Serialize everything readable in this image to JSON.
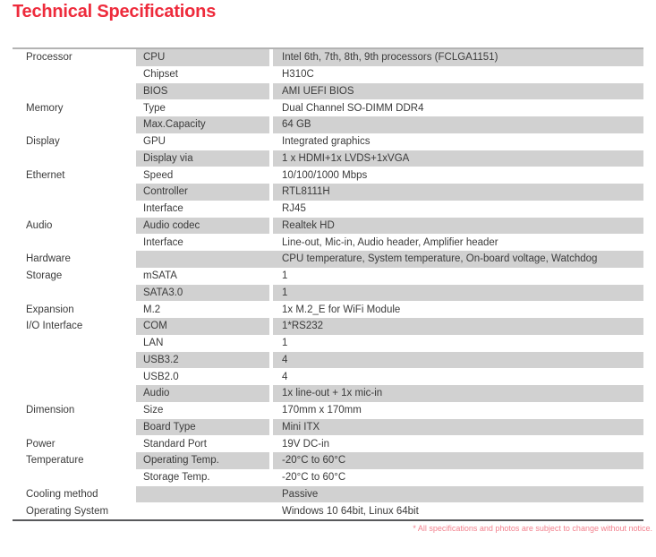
{
  "title": "Technical Specifications",
  "footnote": "* All specifications and photos are subject to change without notice.",
  "colors": {
    "accent_red": "#ee2b3c",
    "footnote_red": "#f2808d",
    "stripe_gray": "#d1d1d1",
    "border_top": "#b3b3b3",
    "border_bottom": "#58595b",
    "text": "#3b3b3b"
  },
  "table": {
    "rows": [
      {
        "category": "Processor",
        "label": "CPU",
        "value": "Intel 6th, 7th, 8th, 9th processors (FCLGA1151)",
        "shaded": true,
        "merged": false
      },
      {
        "category": "",
        "label": "Chipset",
        "value": "H310C",
        "shaded": false,
        "merged": false
      },
      {
        "category": "",
        "label": "BIOS",
        "value": "AMI UEFI BIOS",
        "shaded": true,
        "merged": false
      },
      {
        "category": "Memory",
        "label": "Type",
        "value": "Dual Channel SO-DIMM DDR4",
        "shaded": false,
        "merged": false
      },
      {
        "category": "",
        "label": "Max.Capacity",
        "value": "64 GB",
        "shaded": true,
        "merged": false
      },
      {
        "category": "Display",
        "label": "GPU",
        "value": "Integrated graphics",
        "shaded": false,
        "merged": false
      },
      {
        "category": "",
        "label": "Display via",
        "value": "1 x HDMI+1x LVDS+1xVGA",
        "shaded": true,
        "merged": false
      },
      {
        "category": "Ethernet",
        "label": "Speed",
        "value": "10/100/1000 Mbps",
        "shaded": false,
        "merged": false
      },
      {
        "category": "",
        "label": "Controller",
        "value": "RTL8111H",
        "shaded": true,
        "merged": false
      },
      {
        "category": "",
        "label": "Interface",
        "value": "RJ45",
        "shaded": false,
        "merged": false
      },
      {
        "category": "Audio",
        "label": "Audio codec",
        "value": "Realtek HD",
        "shaded": true,
        "merged": false
      },
      {
        "category": "",
        "label": "Interface",
        "value": "Line-out, Mic-in, Audio header, Amplifier header",
        "shaded": false,
        "merged": false
      },
      {
        "category": "Hardware",
        "label": "",
        "value": "CPU temperature, System temperature, On-board voltage, Watchdog",
        "shaded": true,
        "merged": true
      },
      {
        "category": "Storage",
        "label": "mSATA",
        "value": "1",
        "shaded": false,
        "merged": false
      },
      {
        "category": "",
        "label": "SATA3.0",
        "value": "1",
        "shaded": true,
        "merged": false
      },
      {
        "category": "Expansion",
        "label": "M.2",
        "value": "1x M.2_E for WiFi Module",
        "shaded": false,
        "merged": false
      },
      {
        "category": "I/O Interface",
        "label": "COM",
        "value": "1*RS232",
        "shaded": true,
        "merged": false
      },
      {
        "category": "",
        "label": "LAN",
        "value": "1",
        "shaded": false,
        "merged": false
      },
      {
        "category": "",
        "label": "USB3.2",
        "value": "4",
        "shaded": true,
        "merged": false
      },
      {
        "category": "",
        "label": "USB2.0",
        "value": "4",
        "shaded": false,
        "merged": false
      },
      {
        "category": "",
        "label": "Audio",
        "value": "1x line-out + 1x mic-in",
        "shaded": true,
        "merged": false
      },
      {
        "category": "Dimension",
        "label": "Size",
        "value": "170mm x 170mm",
        "shaded": false,
        "merged": false
      },
      {
        "category": "",
        "label": "Board Type",
        "value": "Mini ITX",
        "shaded": true,
        "merged": false
      },
      {
        "category": "Power",
        "label": "Standard Port",
        "value": "19V DC-in",
        "shaded": false,
        "merged": false
      },
      {
        "category": "Temperature",
        "label": "Operating Temp.",
        "value": "-20°C to 60°C",
        "shaded": true,
        "merged": false
      },
      {
        "category": "",
        "label": "Storage Temp.",
        "value": "-20°C to 60°C",
        "shaded": false,
        "merged": false
      },
      {
        "category": "Cooling method",
        "label": "",
        "value": "Passive",
        "shaded": true,
        "merged": true
      },
      {
        "category": "Operating System",
        "label": "",
        "value": "Windows 10 64bit, Linux 64bit",
        "shaded": false,
        "merged": true
      }
    ]
  }
}
